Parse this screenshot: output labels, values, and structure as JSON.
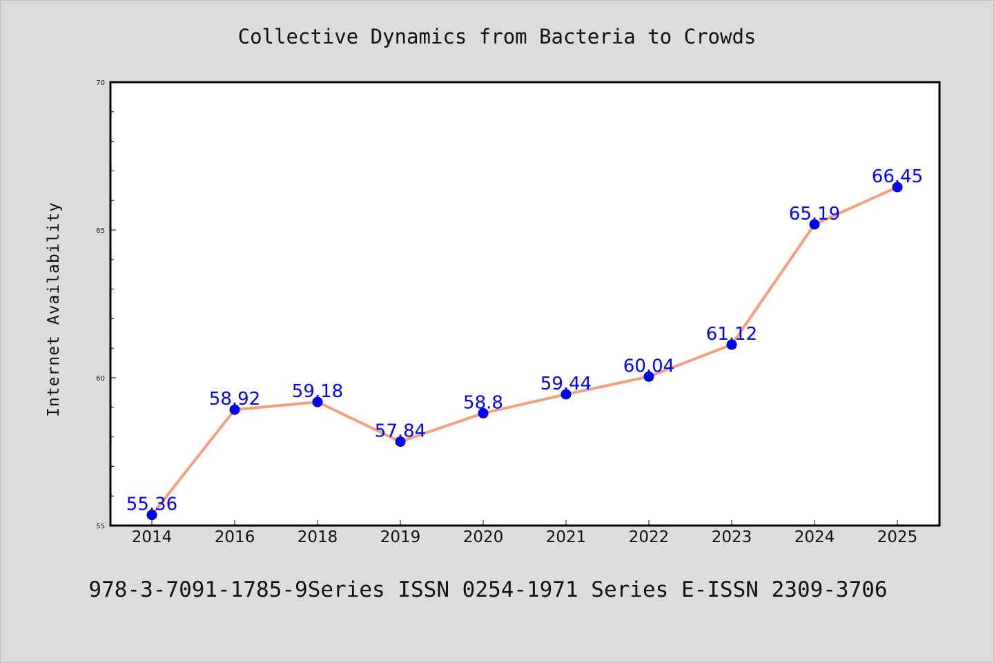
{
  "chart_data": {
    "type": "line",
    "title": "Collective Dynamics from Bacteria to Crowds",
    "footer": "978-3-7091-1785-9Series ISSN 0254-1971 Series E-ISSN 2309-3706",
    "xlabel": "",
    "ylabel": "Internet Availability",
    "categories": [
      "2014",
      "2016",
      "2018",
      "2019",
      "2020",
      "2021",
      "2022",
      "2023",
      "2024",
      "2025"
    ],
    "series": [
      {
        "values": [
          55.36,
          58.92,
          59.18,
          57.84,
          58.8,
          59.44,
          60.04,
          61.12,
          65.19,
          66.45
        ],
        "labels": [
          "55.36",
          "58.92",
          "59.18",
          "57.84",
          "58.8",
          "59.44",
          "60.04",
          "61.12",
          "65.19",
          "66.45"
        ],
        "line_color": "#f4a07f",
        "marker_color": "#0000ff",
        "label_color": "#0000ff"
      }
    ],
    "ylim": [
      55,
      70
    ],
    "yticks": [
      "55",
      "60",
      "65",
      "70"
    ],
    "grid": false,
    "legend": "none",
    "background": "#dcdcdc",
    "plot_background": "#ffffff"
  }
}
